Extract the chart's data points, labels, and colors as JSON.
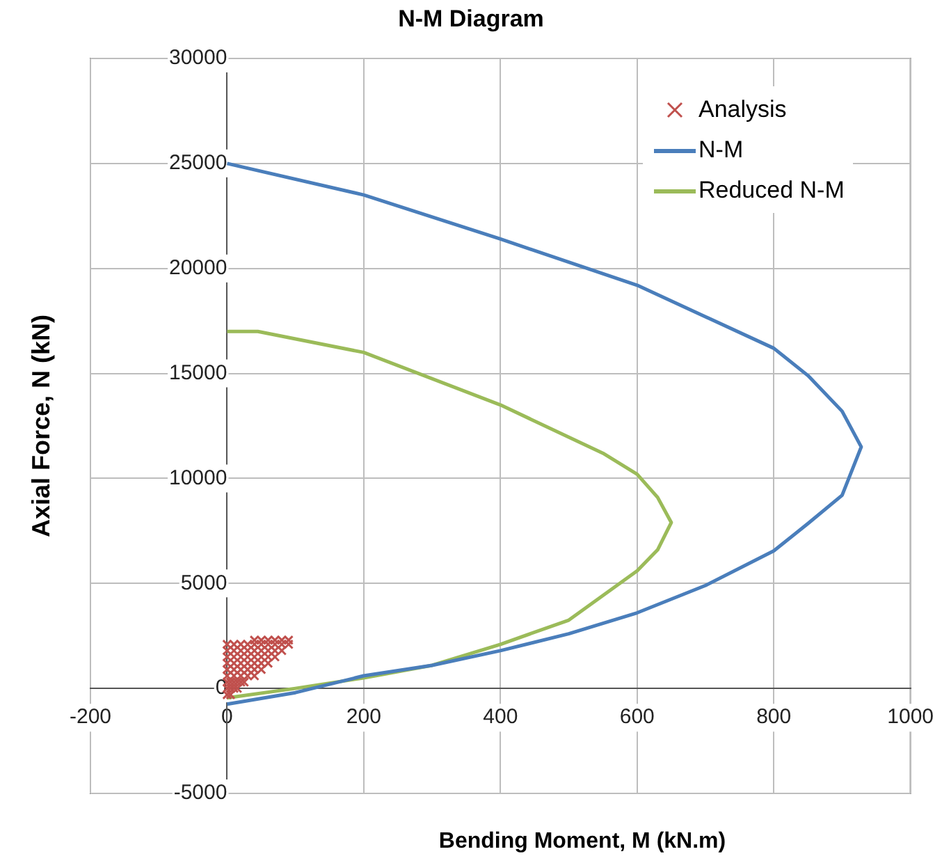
{
  "chart_data": {
    "type": "line",
    "title": "N-M Diagram",
    "xlabel": "Bending Moment, M (kN.m)",
    "ylabel": "Axial Force, N (kN)",
    "xlim": [
      -200,
      1000
    ],
    "xticks": [
      -200,
      0,
      200,
      400,
      600,
      800,
      1000
    ],
    "ylim": [
      -5000,
      30000
    ],
    "yticks": [
      -5000,
      0,
      5000,
      10000,
      15000,
      20000,
      25000,
      30000
    ],
    "grid": true,
    "legend": "top right",
    "line_style": "solid",
    "series": [
      {
        "name": "Analysis",
        "type": "scatter",
        "marker": "cross",
        "color": "#c0504d",
        "x": [
          0,
          5,
          0,
          5,
          10,
          15,
          0,
          5,
          10,
          15,
          20,
          25,
          0,
          10,
          20,
          30,
          40,
          0,
          10,
          20,
          30,
          40,
          50,
          0,
          10,
          20,
          30,
          40,
          50,
          60,
          0,
          10,
          20,
          30,
          40,
          50,
          60,
          70,
          0,
          10,
          20,
          30,
          40,
          50,
          60,
          70,
          80,
          0,
          10,
          20,
          30,
          40,
          50,
          60,
          70,
          80,
          90,
          40,
          50,
          60,
          70,
          80,
          90
        ],
        "values": [
          -300,
          -300,
          0,
          0,
          0,
          0,
          300,
          300,
          300,
          300,
          300,
          300,
          600,
          600,
          600,
          600,
          600,
          900,
          900,
          900,
          900,
          900,
          900,
          1200,
          1200,
          1200,
          1200,
          1200,
          1200,
          1200,
          1500,
          1500,
          1500,
          1500,
          1500,
          1500,
          1500,
          1500,
          1800,
          1800,
          1800,
          1800,
          1800,
          1800,
          1800,
          1800,
          1800,
          2100,
          2100,
          2100,
          2100,
          2100,
          2100,
          2100,
          2100,
          2100,
          2100,
          2300,
          2300,
          2300,
          2300,
          2300,
          2300
        ]
      },
      {
        "name": "N-M",
        "color": "#4a7ebb",
        "marker": "none",
        "x": [
          0,
          200,
          400,
          600,
          800,
          850,
          900,
          928,
          900,
          850,
          800,
          700,
          600,
          500,
          400,
          300,
          200,
          100,
          0
        ],
        "values": [
          25000,
          23500,
          21400,
          19200,
          16200,
          14900,
          13200,
          11500,
          9200,
          7850,
          6550,
          4900,
          3600,
          2600,
          1800,
          1100,
          600,
          -200,
          -750
        ]
      },
      {
        "name": "Reduced N-M",
        "color": "#9bbb59",
        "marker": "none",
        "x": [
          0,
          45,
          200,
          400,
          550,
          600,
          630,
          650,
          630,
          600,
          500,
          400,
          300,
          200,
          100,
          0
        ],
        "values": [
          17000,
          17000,
          16000,
          13500,
          11200,
          10200,
          9100,
          7900,
          6600,
          5600,
          3250,
          2100,
          1100,
          500,
          0,
          -450
        ]
      }
    ]
  }
}
